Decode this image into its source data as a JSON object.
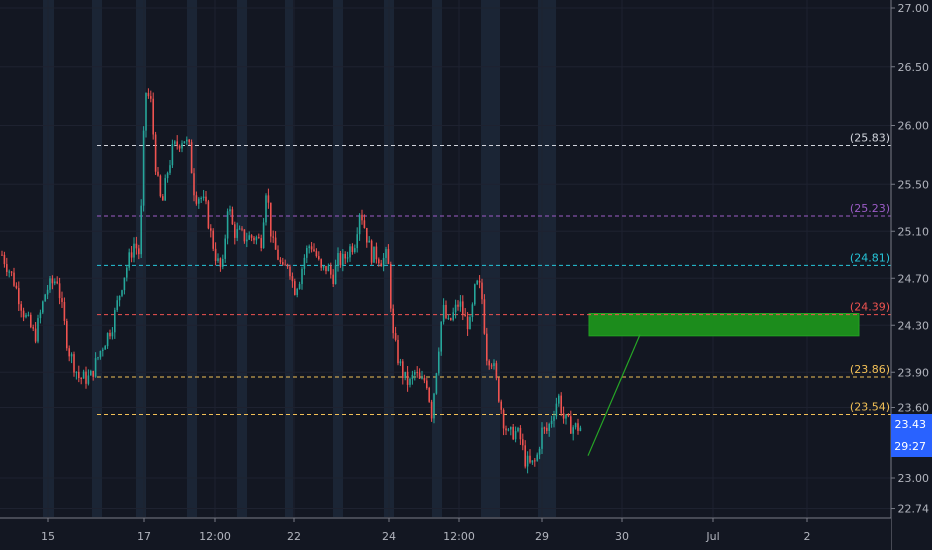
{
  "chart_data": {
    "type": "candlestick",
    "ylim": [
      22.74,
      27.0
    ],
    "y_ticks": [
      "27.00",
      "26.50",
      "26.00",
      "25.50",
      "25.10",
      "24.70",
      "24.30",
      "23.90",
      "23.60",
      "23.00",
      "22.74"
    ],
    "x_ticks": [
      "15",
      "17",
      "12:00",
      "22",
      "24",
      "12:00",
      "29",
      "30",
      "Jul",
      "2"
    ],
    "grid": true,
    "levels": [
      {
        "label": "(25.83)",
        "value": 25.83,
        "color": "#d1d4dc"
      },
      {
        "label": "(25.23)",
        "value": 25.23,
        "color": "#9c5cc7"
      },
      {
        "label": "(24.81)",
        "value": 24.81,
        "color": "#26c6da"
      },
      {
        "label": "(24.39)",
        "value": 24.39,
        "color": "#ef5350"
      },
      {
        "label": "(23.86)",
        "value": 23.86,
        "color": "#f2c057"
      },
      {
        "label": "(23.54)",
        "value": 23.54,
        "color": "#f2c057"
      }
    ],
    "last_price": {
      "value": 23.43,
      "label": "23.43",
      "countdown": "29:27",
      "color": "#2962ff"
    },
    "target_zone": {
      "from": 24.21,
      "to": 24.4,
      "color": "#1c8c1c"
    },
    "projection": {
      "from": 23.19,
      "to": 24.22,
      "color": "#26a626"
    },
    "up_color": "#26a69a",
    "down_color": "#ef5350",
    "anchors": [
      {
        "t": 0,
        "p": 24.9
      },
      {
        "t": 2,
        "p": 24.7
      },
      {
        "t": 4,
        "p": 24.4
      },
      {
        "t": 6,
        "p": 24.2
      },
      {
        "t": 8,
        "p": 24.6
      },
      {
        "t": 10,
        "p": 24.7
      },
      {
        "t": 12,
        "p": 24.1
      },
      {
        "t": 14,
        "p": 23.85
      },
      {
        "t": 16,
        "p": 23.85
      },
      {
        "t": 18,
        "p": 24.1
      },
      {
        "t": 20,
        "p": 24.3
      },
      {
        "t": 22,
        "p": 24.7
      },
      {
        "t": 24,
        "p": 25.0
      },
      {
        "t": 25,
        "p": 24.9
      },
      {
        "t": 26,
        "p": 26.3
      },
      {
        "t": 27,
        "p": 26.2
      },
      {
        "t": 28,
        "p": 25.6
      },
      {
        "t": 29,
        "p": 25.3
      },
      {
        "t": 30,
        "p": 25.6
      },
      {
        "t": 31,
        "p": 25.8
      },
      {
        "t": 32,
        "p": 25.85
      },
      {
        "t": 33,
        "p": 25.9
      },
      {
        "t": 34,
        "p": 25.8
      },
      {
        "t": 35,
        "p": 25.4
      },
      {
        "t": 36,
        "p": 25.4
      },
      {
        "t": 37,
        "p": 25.3
      },
      {
        "t": 38,
        "p": 25.05
      },
      {
        "t": 39,
        "p": 24.85
      },
      {
        "t": 40,
        "p": 24.75
      },
      {
        "t": 41,
        "p": 25.35
      },
      {
        "t": 42,
        "p": 25.1
      },
      {
        "t": 44,
        "p": 25.05
      },
      {
        "t": 46,
        "p": 25.05
      },
      {
        "t": 47,
        "p": 25.0
      },
      {
        "t": 48,
        "p": 25.5
      },
      {
        "t": 49,
        "p": 25.0
      },
      {
        "t": 50,
        "p": 24.9
      },
      {
        "t": 51,
        "p": 24.75
      },
      {
        "t": 52,
        "p": 24.85
      },
      {
        "t": 53,
        "p": 24.6
      },
      {
        "t": 54,
        "p": 24.7
      },
      {
        "t": 55,
        "p": 24.9
      },
      {
        "t": 56,
        "p": 25.0
      },
      {
        "t": 57,
        "p": 24.9
      },
      {
        "t": 58,
        "p": 24.75
      },
      {
        "t": 59,
        "p": 24.8
      },
      {
        "t": 60,
        "p": 24.7
      },
      {
        "t": 61,
        "p": 24.85
      },
      {
        "t": 62,
        "p": 24.85
      },
      {
        "t": 63,
        "p": 24.95
      },
      {
        "t": 64,
        "p": 25.0
      },
      {
        "t": 65,
        "p": 25.3
      },
      {
        "t": 66,
        "p": 25.1
      },
      {
        "t": 67,
        "p": 24.9
      },
      {
        "t": 68,
        "p": 24.9
      },
      {
        "t": 69,
        "p": 24.85
      },
      {
        "t": 70,
        "p": 24.9
      },
      {
        "t": 71,
        "p": 24.2
      },
      {
        "t": 72,
        "p": 24.0
      },
      {
        "t": 73,
        "p": 23.85
      },
      {
        "t": 74,
        "p": 23.8
      },
      {
        "t": 75,
        "p": 23.9
      },
      {
        "t": 76,
        "p": 23.8
      },
      {
        "t": 77,
        "p": 23.85
      },
      {
        "t": 78,
        "p": 23.55
      },
      {
        "t": 79,
        "p": 24.0
      },
      {
        "t": 80,
        "p": 24.45
      },
      {
        "t": 81,
        "p": 24.3
      },
      {
        "t": 82,
        "p": 24.4
      },
      {
        "t": 83,
        "p": 24.5
      },
      {
        "t": 84,
        "p": 24.35
      },
      {
        "t": 85,
        "p": 24.3
      },
      {
        "t": 86,
        "p": 24.65
      },
      {
        "t": 87,
        "p": 24.6
      },
      {
        "t": 88,
        "p": 24.05
      },
      {
        "t": 89,
        "p": 24.0
      },
      {
        "t": 90,
        "p": 23.75
      },
      {
        "t": 91,
        "p": 23.5
      },
      {
        "t": 92,
        "p": 23.35
      },
      {
        "t": 93,
        "p": 23.4
      },
      {
        "t": 94,
        "p": 23.35
      },
      {
        "t": 95,
        "p": 23.15
      },
      {
        "t": 96,
        "p": 23.1
      },
      {
        "t": 97,
        "p": 23.15
      },
      {
        "t": 98,
        "p": 23.4
      },
      {
        "t": 99,
        "p": 23.4
      },
      {
        "t": 100,
        "p": 23.55
      },
      {
        "t": 101,
        "p": 23.7
      },
      {
        "t": 102,
        "p": 23.5
      },
      {
        "t": 103,
        "p": 23.45
      },
      {
        "t": 104,
        "p": 23.43
      },
      {
        "t": 105,
        "p": 23.43
      }
    ]
  }
}
